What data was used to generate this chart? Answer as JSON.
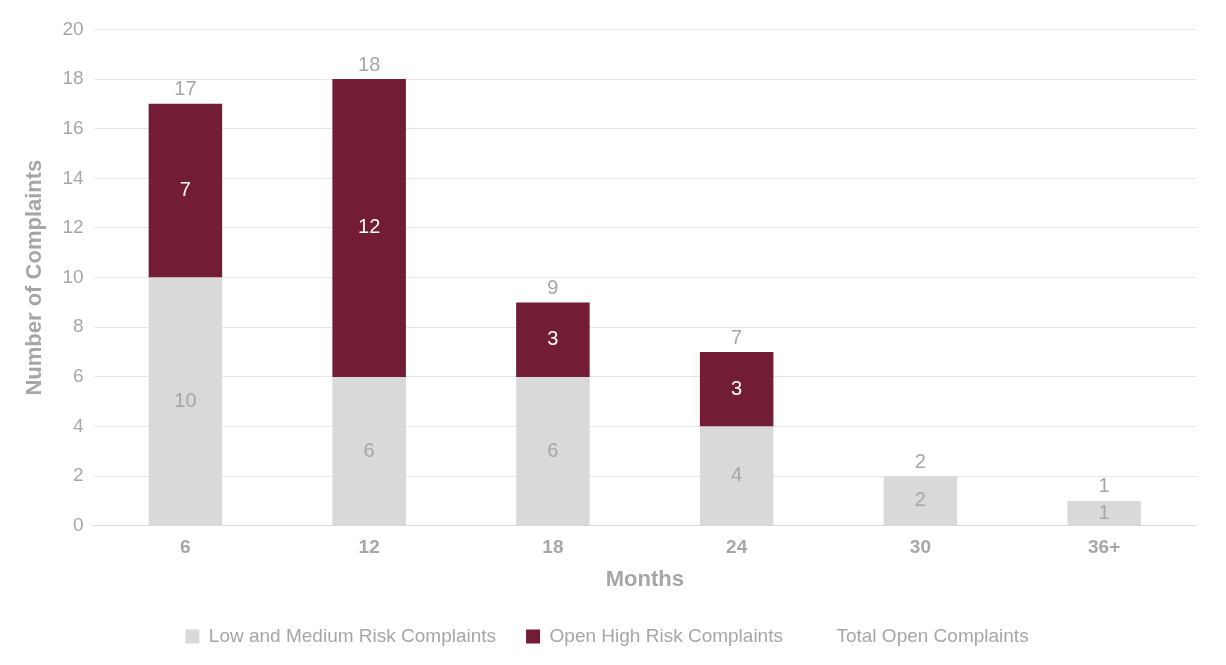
{
  "chart_data": {
    "type": "bar",
    "stacked": true,
    "xlabel": "Months",
    "ylabel": "Number of Complaints",
    "categories": [
      "6",
      "12",
      "18",
      "24",
      "30",
      "36+"
    ],
    "series": [
      {
        "name": "Low and Medium Risk Complaints",
        "color": "#d9d9d9",
        "values": [
          10,
          6,
          6,
          4,
          2,
          1
        ]
      },
      {
        "name": "Open High Risk Complaints",
        "color": "#721c35",
        "values": [
          7,
          12,
          3,
          3,
          null,
          null
        ]
      }
    ],
    "totals": [
      "17",
      "18",
      "9",
      "7",
      "2",
      "1"
    ],
    "annotations": [
      "Total Open Complaints"
    ],
    "ylim": [
      0,
      20
    ],
    "yticks": [
      0,
      2,
      4,
      6,
      8,
      10,
      12,
      14,
      16,
      18,
      20
    ],
    "grid": "y",
    "legend": "bottom",
    "data_labels": true
  }
}
